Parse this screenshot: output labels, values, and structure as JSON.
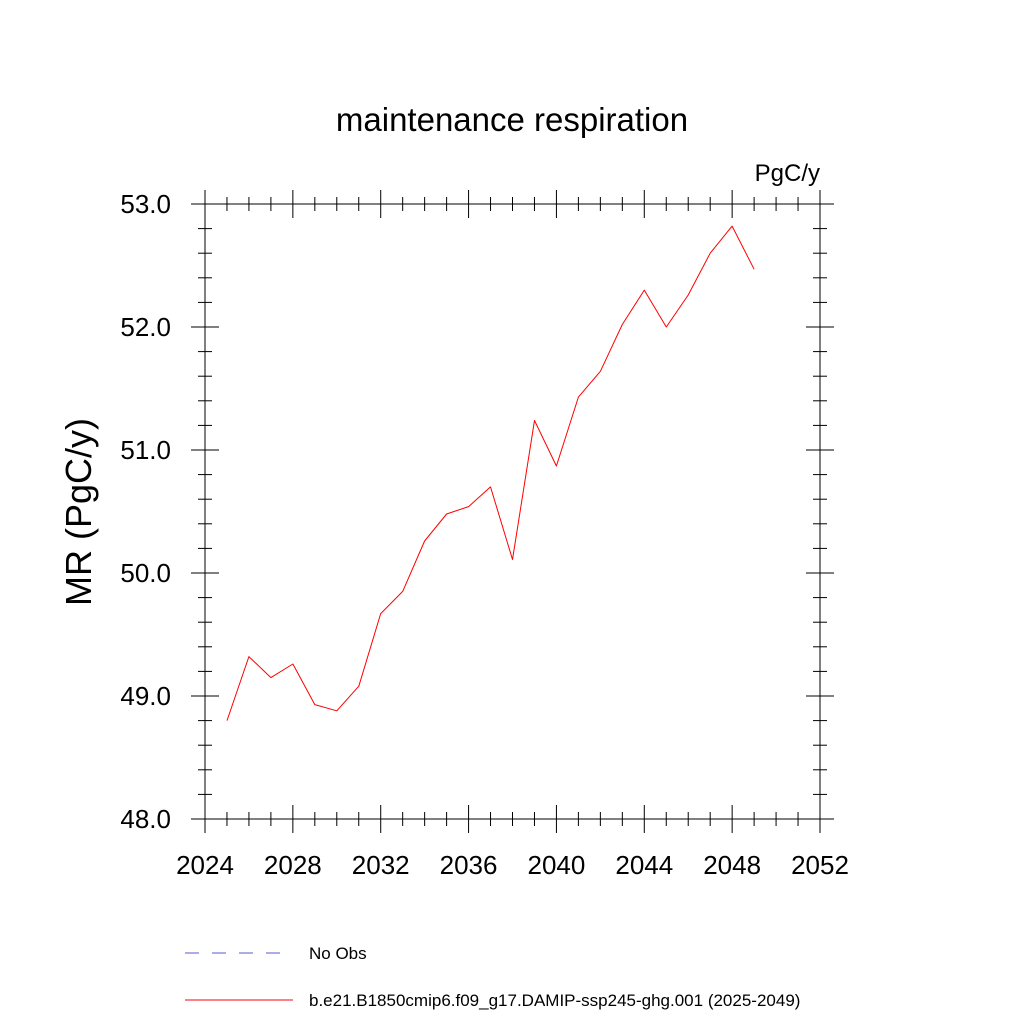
{
  "chart_data": {
    "type": "line",
    "title": "maintenance respiration",
    "units_label": "PgC/y",
    "ylabel": "MR  (PgC/y)",
    "xlabel": "",
    "xlim": [
      2024,
      2052
    ],
    "ylim": [
      48.0,
      53.0
    ],
    "x_ticks": [
      2024,
      2028,
      2032,
      2036,
      2040,
      2044,
      2048,
      2052
    ],
    "x_tick_labels": [
      "2024",
      "2028",
      "2032",
      "2036",
      "2040",
      "2044",
      "2048",
      "2052"
    ],
    "y_ticks": [
      48.0,
      49.0,
      50.0,
      51.0,
      52.0,
      53.0
    ],
    "y_tick_labels": [
      "48.0",
      "49.0",
      "50.0",
      "51.0",
      "52.0",
      "53.0"
    ],
    "grid": false,
    "legend_placement": "bottom",
    "series": [
      {
        "name": "b.e21.B1850cmip6.f09_g17.DAMIP-ssp245-ghg.001 (2025-2049)",
        "color": "#ff0000",
        "style": "solid",
        "x": [
          2025,
          2026,
          2027,
          2028,
          2029,
          2030,
          2031,
          2032,
          2033,
          2034,
          2035,
          2036,
          2037,
          2038,
          2039,
          2040,
          2041,
          2042,
          2043,
          2044,
          2045,
          2046,
          2047,
          2048,
          2049
        ],
        "y": [
          48.8,
          49.32,
          49.15,
          49.26,
          48.93,
          48.88,
          49.08,
          49.67,
          49.85,
          50.26,
          50.48,
          50.54,
          50.7,
          50.11,
          51.24,
          50.87,
          51.43,
          51.64,
          52.02,
          52.3,
          52.0,
          52.26,
          52.6,
          52.82,
          52.47
        ]
      }
    ],
    "legend": [
      {
        "label": "No Obs",
        "color": "#5a5ad2",
        "style": "dashed"
      },
      {
        "label": "b.e21.B1850cmip6.f09_g17.DAMIP-ssp245-ghg.001 (2025-2049)",
        "color": "#ff0000",
        "style": "solid"
      }
    ]
  }
}
